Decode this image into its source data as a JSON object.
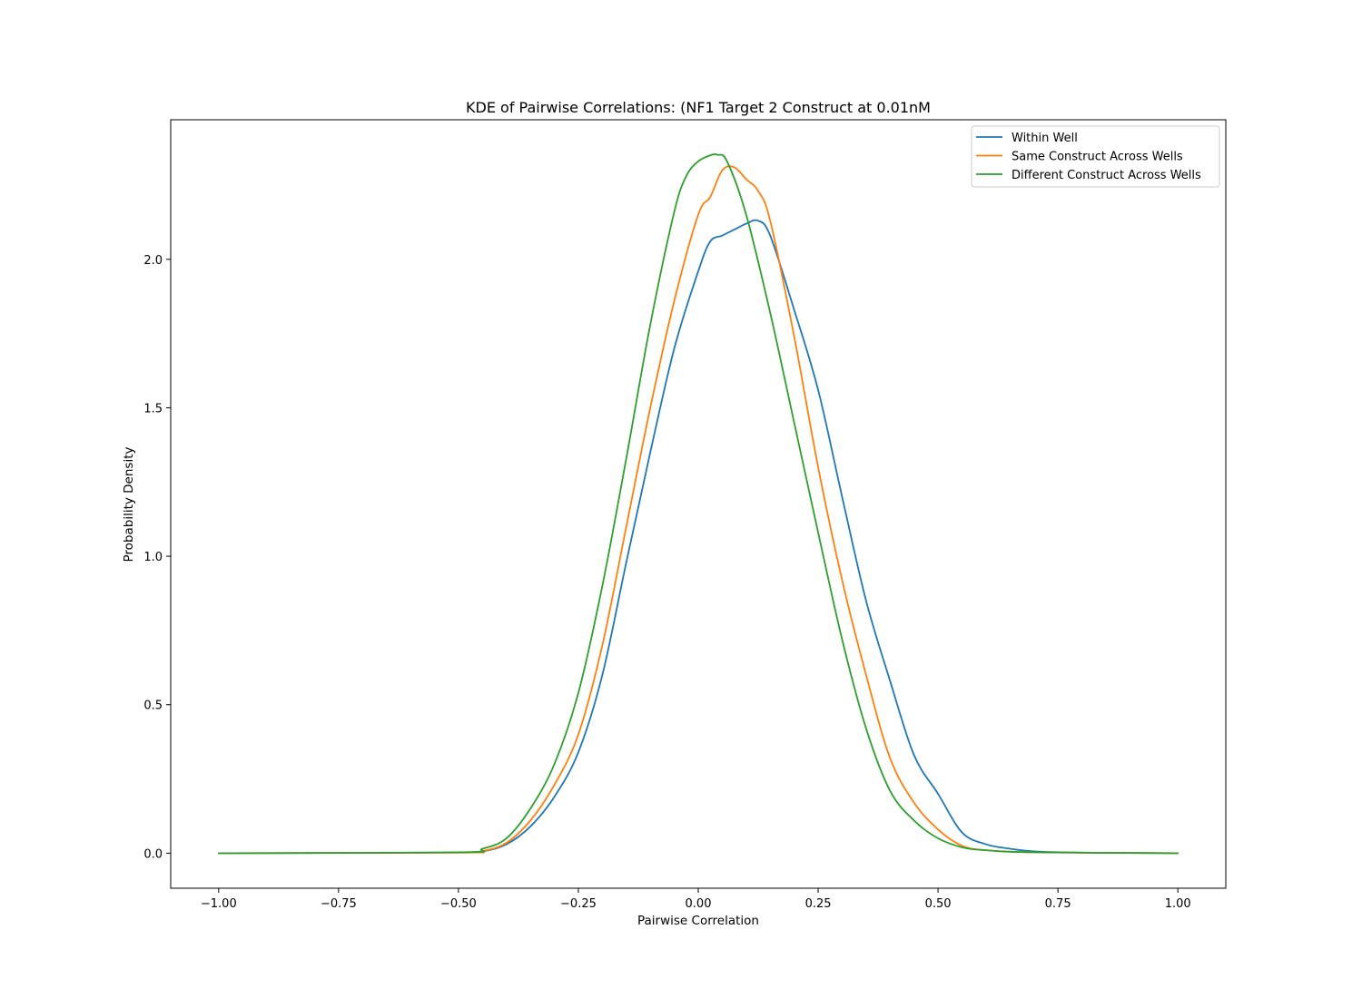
{
  "chart_data": {
    "type": "line",
    "title": "KDE of Pairwise Correlations: (NF1 Target 2 Construct at 0.01nM",
    "xlabel": "Pairwise Correlation",
    "ylabel": "Probability Density",
    "xlim": [
      -1.1,
      1.1
    ],
    "ylim": [
      -0.118,
      2.47
    ],
    "xticks": [
      -1.0,
      -0.75,
      -0.5,
      -0.25,
      0.0,
      0.25,
      0.5,
      0.75,
      1.0
    ],
    "xtick_labels": [
      "−1.00",
      "−0.75",
      "−0.50",
      "−0.25",
      "0.00",
      "0.25",
      "0.50",
      "0.75",
      "1.00"
    ],
    "yticks": [
      0.0,
      0.5,
      1.0,
      1.5,
      2.0
    ],
    "ytick_labels": [
      "0.0",
      "0.5",
      "1.0",
      "1.5",
      "2.0"
    ],
    "grid": false,
    "legend_position": "top-right",
    "series": [
      {
        "name": "Within Well",
        "color": "#1f77b4",
        "points": [
          [
            -1.0,
            0.0
          ],
          [
            -0.5,
            0.002
          ],
          [
            -0.45,
            0.006
          ],
          [
            -0.4,
            0.03
          ],
          [
            -0.35,
            0.09
          ],
          [
            -0.3,
            0.19
          ],
          [
            -0.25,
            0.34
          ],
          [
            -0.2,
            0.6
          ],
          [
            -0.15,
            0.98
          ],
          [
            -0.1,
            1.35
          ],
          [
            -0.05,
            1.7
          ],
          [
            0.0,
            1.96
          ],
          [
            0.025,
            2.06
          ],
          [
            0.05,
            2.08
          ],
          [
            0.075,
            2.1
          ],
          [
            0.1,
            2.12
          ],
          [
            0.125,
            2.13
          ],
          [
            0.15,
            2.08
          ],
          [
            0.2,
            1.83
          ],
          [
            0.25,
            1.56
          ],
          [
            0.3,
            1.2
          ],
          [
            0.35,
            0.85
          ],
          [
            0.4,
            0.58
          ],
          [
            0.45,
            0.33
          ],
          [
            0.5,
            0.2
          ],
          [
            0.55,
            0.07
          ],
          [
            0.6,
            0.03
          ],
          [
            0.65,
            0.015
          ],
          [
            0.7,
            0.006
          ],
          [
            0.8,
            0.002
          ],
          [
            1.0,
            0.0
          ]
        ]
      },
      {
        "name": "Same Construct Across Wells",
        "color": "#ff7f0e",
        "points": [
          [
            -1.0,
            0.0
          ],
          [
            -0.5,
            0.002
          ],
          [
            -0.45,
            0.007
          ],
          [
            -0.4,
            0.035
          ],
          [
            -0.35,
            0.11
          ],
          [
            -0.3,
            0.23
          ],
          [
            -0.25,
            0.4
          ],
          [
            -0.2,
            0.7
          ],
          [
            -0.15,
            1.1
          ],
          [
            -0.1,
            1.5
          ],
          [
            -0.05,
            1.86
          ],
          [
            0.0,
            2.15
          ],
          [
            0.025,
            2.21
          ],
          [
            0.05,
            2.3
          ],
          [
            0.075,
            2.31
          ],
          [
            0.1,
            2.27
          ],
          [
            0.125,
            2.23
          ],
          [
            0.15,
            2.13
          ],
          [
            0.2,
            1.74
          ],
          [
            0.25,
            1.3
          ],
          [
            0.3,
            0.92
          ],
          [
            0.35,
            0.6
          ],
          [
            0.4,
            0.32
          ],
          [
            0.45,
            0.17
          ],
          [
            0.5,
            0.08
          ],
          [
            0.55,
            0.025
          ],
          [
            0.6,
            0.01
          ],
          [
            0.7,
            0.003
          ],
          [
            1.0,
            0.0
          ]
        ]
      },
      {
        "name": "Different Construct Across Wells",
        "color": "#2ca02c",
        "points": [
          [
            -1.0,
            0.0
          ],
          [
            -0.5,
            0.003
          ],
          [
            -0.45,
            0.015
          ],
          [
            -0.4,
            0.05
          ],
          [
            -0.35,
            0.15
          ],
          [
            -0.3,
            0.3
          ],
          [
            -0.25,
            0.54
          ],
          [
            -0.2,
            0.9
          ],
          [
            -0.15,
            1.33
          ],
          [
            -0.1,
            1.78
          ],
          [
            -0.05,
            2.16
          ],
          [
            -0.025,
            2.28
          ],
          [
            0.0,
            2.33
          ],
          [
            0.025,
            2.35
          ],
          [
            0.04,
            2.352
          ],
          [
            0.06,
            2.33
          ],
          [
            0.1,
            2.15
          ],
          [
            0.15,
            1.82
          ],
          [
            0.2,
            1.45
          ],
          [
            0.25,
            1.08
          ],
          [
            0.3,
            0.72
          ],
          [
            0.35,
            0.42
          ],
          [
            0.4,
            0.21
          ],
          [
            0.45,
            0.11
          ],
          [
            0.5,
            0.05
          ],
          [
            0.55,
            0.02
          ],
          [
            0.6,
            0.01
          ],
          [
            0.7,
            0.003
          ],
          [
            1.0,
            0.0
          ]
        ]
      }
    ]
  }
}
